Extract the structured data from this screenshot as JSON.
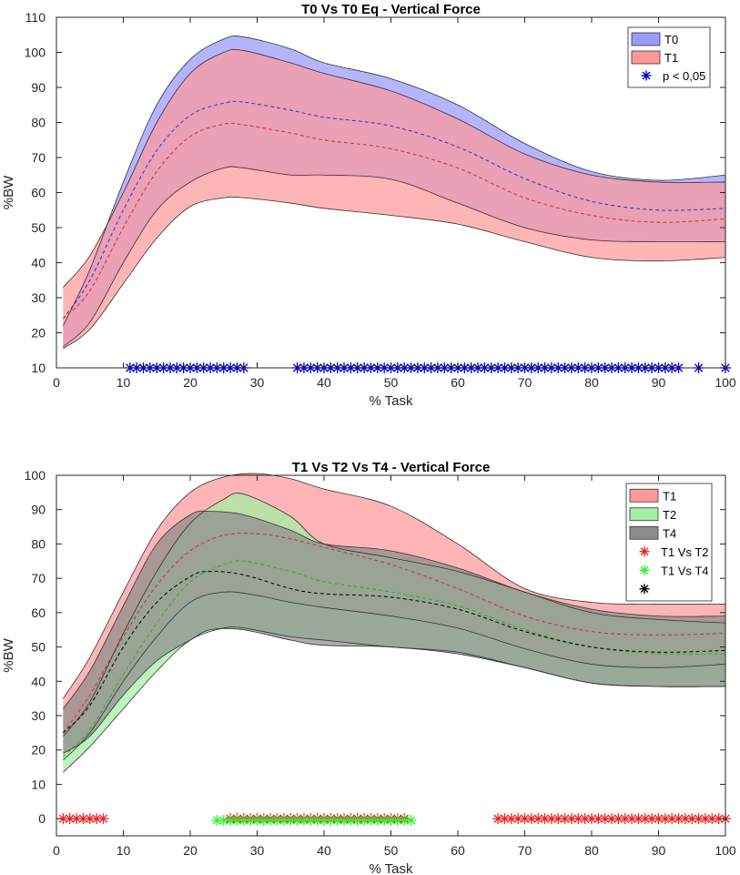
{
  "chart_data": [
    {
      "type": "area",
      "title": "T0 Vs T0 Eq - Vertical Force",
      "xlabel": "% Task",
      "ylabel": "%BW",
      "xlim": [
        0,
        100
      ],
      "ylim": [
        10,
        110
      ],
      "xticks": [
        "0",
        "10",
        "20",
        "30",
        "40",
        "50",
        "60",
        "70",
        "80",
        "90",
        "100"
      ],
      "yticks": [
        "10",
        "20",
        "30",
        "40",
        "50",
        "60",
        "70",
        "80",
        "90",
        "100",
        "110"
      ],
      "legend_position": "top-right",
      "series": [
        {
          "name": "T0",
          "color": "#9999ff",
          "mean_color": "#3333cc",
          "x": [
            1,
            5,
            10,
            15,
            20,
            25,
            28,
            35,
            40,
            50,
            60,
            70,
            80,
            90,
            100
          ],
          "upper": [
            22,
            38,
            63,
            85,
            98,
            103.8,
            104.4,
            101,
            97,
            92.5,
            85,
            74,
            66,
            63.5,
            65
          ],
          "mean": [
            24,
            35,
            55,
            72,
            82,
            85.5,
            85.8,
            83.5,
            81.5,
            79,
            73,
            64,
            57.5,
            55,
            55.5
          ],
          "lower": [
            16,
            23,
            40,
            55,
            63,
            67,
            67,
            65,
            65,
            63.8,
            57,
            50,
            46.5,
            46,
            46
          ]
        },
        {
          "name": "T1",
          "color": "#ff9999",
          "mean_color": "#cc3333",
          "x": [
            1,
            5,
            10,
            15,
            20,
            25,
            28,
            35,
            40,
            50,
            60,
            70,
            80,
            90,
            100
          ],
          "upper": [
            33,
            42,
            60,
            80,
            94,
            100,
            100.5,
            97,
            94,
            89,
            81,
            71,
            65,
            63,
            63
          ],
          "mean": [
            24,
            32,
            50,
            66,
            76,
            79.5,
            79.3,
            77,
            75,
            72.5,
            67,
            58.5,
            53.5,
            51.5,
            52.5
          ],
          "lower": [
            15.5,
            21,
            34,
            47,
            56,
            58.5,
            58.5,
            57,
            55.5,
            53.5,
            51,
            46,
            41.5,
            40.5,
            41.5
          ]
        }
      ],
      "significance": {
        "label": "p < 0,05",
        "color": "#0000cc",
        "y": 10,
        "x": [
          11,
          12,
          13,
          14,
          15,
          16,
          17,
          18,
          19,
          20,
          21,
          22,
          23,
          24,
          25,
          26,
          27,
          28,
          36,
          37,
          38,
          39,
          40,
          41,
          42,
          43,
          44,
          45,
          46,
          47,
          48,
          49,
          50,
          51,
          52,
          53,
          54,
          55,
          56,
          57,
          58,
          59,
          60,
          61,
          62,
          63,
          64,
          65,
          66,
          67,
          68,
          69,
          70,
          71,
          72,
          73,
          74,
          75,
          76,
          77,
          78,
          79,
          80,
          81,
          82,
          83,
          84,
          85,
          86,
          87,
          88,
          89,
          90,
          91,
          92,
          93,
          96,
          100
        ]
      }
    },
    {
      "type": "area",
      "title": "T1 Vs T2 Vs T4 - Vertical Force",
      "xlabel": "% Task",
      "ylabel": "%BW",
      "xlim": [
        0,
        100
      ],
      "ylim": [
        -5,
        100
      ],
      "xticks": [
        "0",
        "10",
        "20",
        "30",
        "40",
        "50",
        "60",
        "70",
        "80",
        "90",
        "100"
      ],
      "yticks": [
        "0",
        "10",
        "20",
        "30",
        "40",
        "50",
        "60",
        "70",
        "80",
        "90",
        "100"
      ],
      "legend_position": "top-right",
      "series": [
        {
          "name": "T1",
          "color": "#ff9999",
          "mean_color": "#cc3333",
          "x": [
            1,
            5,
            10,
            15,
            20,
            25,
            30,
            35,
            40,
            50,
            60,
            70,
            80,
            90,
            100
          ],
          "upper": [
            35,
            47,
            66,
            84,
            95,
            99.5,
            100.5,
            99,
            96,
            91,
            80,
            67,
            63,
            62.5,
            62.5
          ],
          "mean": [
            25,
            36,
            53,
            68,
            78,
            82.5,
            83,
            81.5,
            79,
            74,
            67,
            59,
            54.5,
            53.5,
            54
          ],
          "lower": [
            17,
            25,
            40,
            53,
            63,
            66,
            65,
            63,
            61.5,
            59,
            55.5,
            49.5,
            45,
            44,
            45
          ]
        },
        {
          "name": "T2",
          "color": "#a3f0a3",
          "mean_color": "#33aa33",
          "x": [
            1,
            5,
            10,
            15,
            20,
            25,
            28,
            35,
            40,
            50,
            60,
            70,
            80,
            90,
            100
          ],
          "upper": [
            24,
            34,
            54,
            72,
            86,
            93,
            94.5,
            88,
            80,
            76,
            72,
            66,
            60,
            58,
            57
          ],
          "mean": [
            18,
            26,
            42,
            57,
            69,
            74,
            75,
            72,
            69,
            66,
            62,
            55,
            50,
            48,
            48
          ],
          "lower": [
            13.5,
            21,
            32,
            43,
            52,
            55.5,
            55.5,
            53,
            52,
            50,
            48.5,
            44,
            39.5,
            38.5,
            38.5
          ]
        },
        {
          "name": "T4",
          "color": "#8c8c8c",
          "mean_color": "#000000",
          "x": [
            1,
            5,
            10,
            15,
            20,
            23,
            28,
            35,
            40,
            50,
            60,
            70,
            80,
            90,
            100
          ],
          "upper": [
            32,
            43,
            62,
            80,
            88.5,
            89.5,
            88.5,
            84,
            80,
            78,
            73,
            66,
            61,
            59,
            59
          ],
          "mean": [
            25,
            33,
            50,
            63,
            70.5,
            72,
            71,
            67,
            65.5,
            64.5,
            61,
            54.5,
            50,
            48.5,
            49
          ],
          "lower": [
            19,
            24,
            36,
            46,
            52,
            55,
            55,
            52,
            50.5,
            50,
            48,
            44,
            39.5,
            38.5,
            38.5
          ]
        }
      ],
      "significance_sets": [
        {
          "label": "T1 Vs T2",
          "color": "#ee2222",
          "y": 0,
          "x": [
            1,
            2,
            3,
            4,
            5,
            6,
            7,
            26,
            27,
            28,
            29,
            30,
            31,
            32,
            33,
            34,
            35,
            36,
            37,
            38,
            39,
            40,
            41,
            42,
            43,
            44,
            45,
            46,
            47,
            48,
            49,
            50,
            51,
            52,
            66,
            67,
            68,
            69,
            70,
            71,
            72,
            73,
            74,
            75,
            76,
            77,
            78,
            79,
            80,
            81,
            82,
            83,
            84,
            85,
            86,
            87,
            88,
            89,
            90,
            91,
            92,
            93,
            94,
            95,
            96,
            97,
            98,
            99,
            100
          ]
        },
        {
          "label": "T1 Vs T4",
          "color": "#33ee33",
          "y": -0.5,
          "x": [
            24,
            25,
            26,
            27,
            28,
            29,
            30,
            31,
            32,
            33,
            34,
            35,
            36,
            37,
            38,
            39,
            40,
            41,
            42,
            43,
            44,
            45,
            46,
            47,
            48,
            49,
            50,
            51,
            52,
            53
          ]
        },
        {
          "label": "",
          "color": "#000000",
          "y": -1,
          "x": []
        }
      ]
    }
  ]
}
